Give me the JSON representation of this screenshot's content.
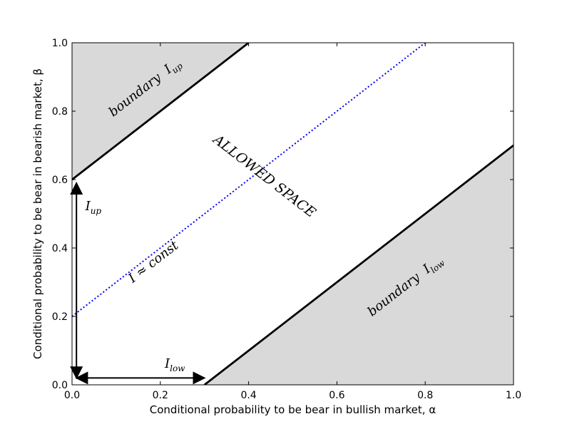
{
  "chart_data": {
    "type": "area",
    "xlabel": "Conditional probability to be bear in bullish market, α",
    "ylabel": "Conditional probability to be bear in bearish market, β",
    "xlim": [
      0.0,
      1.0
    ],
    "ylim": [
      0.0,
      1.0
    ],
    "x_ticks": [
      0.0,
      0.2,
      0.4,
      0.6,
      0.8,
      1.0
    ],
    "y_ticks": [
      0.0,
      0.2,
      0.4,
      0.6,
      0.8,
      1.0
    ],
    "x_tick_labels": [
      "0.0",
      "0.2",
      "0.4",
      "0.6",
      "0.8",
      "1.0"
    ],
    "y_tick_labels": [
      "0.0",
      "0.2",
      "0.4",
      "0.6",
      "0.8",
      "1.0"
    ],
    "grid": false,
    "fill_color": "#d9d9d9",
    "line_color": "#000000",
    "const_line_color": "#0000ff",
    "series": [
      {
        "name": "boundary I_up",
        "x": [
          0.0,
          0.4
        ],
        "y": [
          0.6,
          1.0
        ]
      },
      {
        "name": "boundary I_low",
        "x": [
          0.3,
          1.0
        ],
        "y": [
          0.0,
          0.7
        ]
      },
      {
        "name": "I ≈ const",
        "x": [
          0.0,
          0.8
        ],
        "y": [
          0.2,
          1.0
        ]
      }
    ],
    "shaded_regions": [
      {
        "polygon": [
          [
            0.0,
            0.6
          ],
          [
            0.4,
            1.0
          ],
          [
            0.0,
            1.0
          ]
        ]
      },
      {
        "polygon": [
          [
            0.3,
            0.0
          ],
          [
            1.0,
            0.7
          ],
          [
            1.0,
            0.0
          ]
        ]
      }
    ],
    "arrows": [
      {
        "from": [
          0.01,
          0.02
        ],
        "to": [
          0.01,
          0.59
        ]
      },
      {
        "from": [
          0.01,
          0.02
        ],
        "to": [
          0.3,
          0.02
        ]
      }
    ],
    "annotations": {
      "boundary_up": {
        "prefix": "boundary",
        "sym": "I",
        "sub": "up",
        "x": 0.17,
        "y": 0.86
      },
      "boundary_low": {
        "prefix": "boundary",
        "sym": "I",
        "sub": "low",
        "x": 0.76,
        "y": 0.28
      },
      "allowed": {
        "text": "ALLOWED SPACE",
        "x": 0.43,
        "y": 0.6
      },
      "const": {
        "text": "I ≈ const",
        "x": 0.19,
        "y": 0.35
      },
      "i_up": {
        "sym": "I",
        "sub": "up",
        "x": 0.03,
        "y": 0.51
      },
      "i_low": {
        "sym": "I",
        "sub": "low",
        "x": 0.21,
        "y": 0.05
      }
    }
  }
}
